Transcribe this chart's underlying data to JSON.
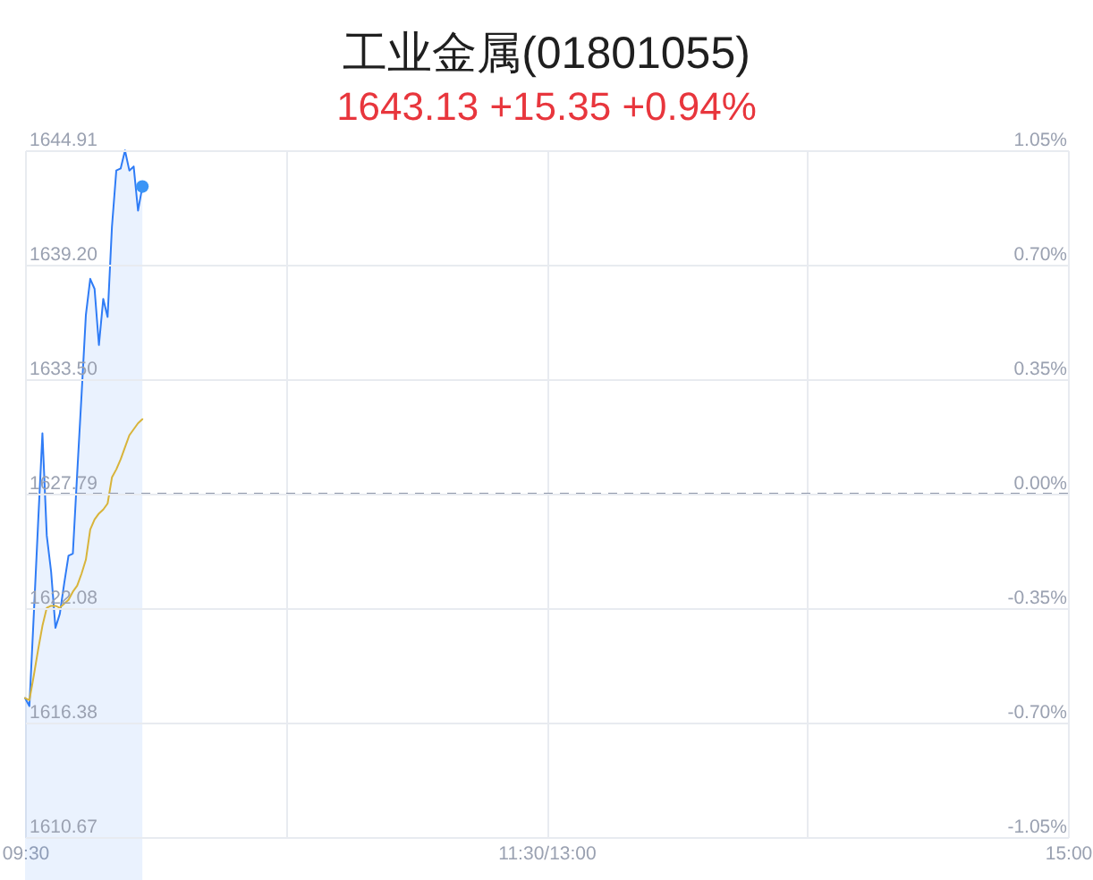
{
  "chart_data": {
    "type": "area",
    "title": "工业金属(01801055)",
    "subtitle": "1643.13 +15.35 +0.94%",
    "categories": [
      "09:30",
      null,
      null,
      null,
      null,
      null,
      null,
      null,
      null,
      null,
      null,
      null,
      null,
      null,
      null,
      null,
      null,
      null,
      null,
      null,
      null,
      null,
      null,
      null,
      null,
      null,
      null,
      null,
      null,
      null,
      null,
      null,
      null,
      null,
      null,
      null,
      null,
      null,
      null,
      null,
      null,
      null,
      null,
      null,
      null,
      null,
      null,
      null,
      null,
      null,
      null,
      null,
      null,
      null,
      null,
      null,
      null,
      null,
      null,
      null,
      null,
      null,
      null,
      null,
      null,
      null,
      null,
      null,
      null,
      null,
      null,
      null,
      null,
      null,
      null,
      null,
      null,
      null,
      null,
      null,
      null,
      null,
      null,
      null,
      null,
      null,
      null,
      null,
      null,
      null,
      null,
      null,
      null,
      null,
      null,
      null,
      null,
      null,
      null,
      null,
      null,
      null,
      null,
      null,
      null,
      null,
      null,
      null,
      null,
      null,
      null,
      null,
      null,
      null,
      null,
      null,
      null,
      null,
      null,
      null,
      "11:30/13:00",
      null,
      null,
      null,
      null,
      null,
      null,
      null,
      null,
      null,
      null,
      null,
      null,
      null,
      null,
      null,
      null,
      null,
      null,
      null,
      null,
      null,
      null,
      null,
      null,
      null,
      null,
      null,
      null,
      null,
      null,
      null,
      null,
      null,
      null,
      null,
      null,
      null,
      null,
      null,
      null,
      null,
      null,
      null,
      null,
      null,
      null,
      null,
      null,
      null,
      null,
      null,
      null,
      null,
      null,
      null,
      null,
      null,
      null,
      null,
      null,
      null,
      null,
      null,
      null,
      null,
      null,
      null,
      null,
      null,
      null,
      null,
      null,
      null,
      null,
      null,
      null,
      null,
      null,
      null,
      null,
      null,
      null,
      null,
      null,
      null,
      null,
      null,
      null,
      null,
      null,
      null,
      null,
      null,
      null,
      null,
      null,
      null,
      null,
      null,
      null,
      null,
      null,
      null,
      null,
      null,
      null,
      null,
      null,
      null,
      null,
      null,
      null,
      null,
      null,
      null,
      null,
      null,
      null,
      null,
      "15:00"
    ],
    "series": [
      {
        "color": "#2f7cf6",
        "values": [
          1617.6,
          1617.2,
          1621.7,
          1626.3,
          1630.8,
          1625.7,
          1623.9,
          1621.1,
          1621.8,
          1623.3,
          1624.7,
          1624.8,
          1628.8,
          1632.7,
          1636.7,
          1638.5,
          1638.0,
          1635.2,
          1637.5,
          1636.6,
          1641.1,
          1643.9,
          1644.0,
          1644.9,
          1643.9,
          1644.1,
          1641.9,
          1643.1,
          null,
          null,
          null,
          null,
          null,
          null,
          null,
          null,
          null,
          null,
          null,
          null,
          null,
          null,
          null,
          null,
          null,
          null,
          null,
          null,
          null,
          null,
          null,
          null,
          null,
          null,
          null,
          null,
          null,
          null,
          null,
          null,
          null,
          null,
          null,
          null,
          null,
          null,
          null,
          null,
          null,
          null,
          null,
          null,
          null,
          null,
          null,
          null,
          null,
          null,
          null,
          null,
          null,
          null,
          null,
          null,
          null,
          null,
          null,
          null,
          null,
          null,
          null,
          null,
          null,
          null,
          null,
          null,
          null,
          null,
          null,
          null,
          null,
          null,
          null,
          null,
          null,
          null,
          null,
          null,
          null,
          null,
          null,
          null,
          null,
          null,
          null,
          null,
          null,
          null,
          null,
          null,
          null,
          null,
          null,
          null,
          null,
          null,
          null,
          null,
          null,
          null,
          null,
          null,
          null,
          null,
          null,
          null,
          null,
          null,
          null,
          null,
          null,
          null,
          null,
          null,
          null,
          null,
          null,
          null,
          null,
          null,
          null,
          null,
          null,
          null,
          null,
          null,
          null,
          null,
          null,
          null,
          null,
          null,
          null,
          null,
          null,
          null,
          null,
          null,
          null,
          null,
          null,
          null,
          null,
          null,
          null,
          null,
          null,
          null,
          null,
          null,
          null,
          null,
          null,
          null,
          null,
          null,
          null,
          null,
          null,
          null,
          null,
          null,
          null,
          null,
          null,
          null,
          null,
          null,
          null,
          null,
          null,
          null,
          null,
          null,
          null,
          null,
          null,
          null,
          null,
          null,
          null,
          null,
          null,
          null,
          null,
          null,
          null,
          null,
          null,
          null,
          null,
          null,
          null,
          null,
          null,
          null,
          null,
          null,
          null,
          null,
          null,
          null,
          null,
          null,
          null,
          null,
          null,
          null,
          null,
          null,
          null
        ]
      },
      {
        "type": "line",
        "color": "#d8b43a",
        "values": [
          1617.6,
          1617.5,
          1618.7,
          1620.0,
          1621.2,
          1622.1,
          1622.2,
          1622.2,
          1622.1,
          1622.3,
          1622.5,
          1622.9,
          1623.2,
          1623.8,
          1624.5,
          1626.0,
          1626.5,
          1626.8,
          1627.0,
          1627.3,
          1628.6,
          1629.0,
          1629.5,
          1630.1,
          1630.7,
          1631.0,
          1631.3,
          1631.5,
          null,
          null,
          null,
          null,
          null,
          null,
          null,
          null,
          null,
          null,
          null,
          null,
          null,
          null,
          null,
          null,
          null,
          null,
          null,
          null,
          null,
          null,
          null,
          null,
          null,
          null,
          null,
          null,
          null,
          null,
          null,
          null,
          null,
          null,
          null,
          null,
          null,
          null,
          null,
          null,
          null,
          null,
          null,
          null,
          null,
          null,
          null,
          null,
          null,
          null,
          null,
          null,
          null,
          null,
          null,
          null,
          null,
          null,
          null,
          null,
          null,
          null,
          null,
          null,
          null,
          null,
          null,
          null,
          null,
          null,
          null,
          null,
          null,
          null,
          null,
          null,
          null,
          null,
          null,
          null,
          null,
          null,
          null,
          null,
          null,
          null,
          null,
          null,
          null,
          null,
          null,
          null,
          null,
          null,
          null,
          null,
          null,
          null,
          null,
          null,
          null,
          null,
          null,
          null,
          null,
          null,
          null,
          null,
          null,
          null,
          null,
          null,
          null,
          null,
          null,
          null,
          null,
          null,
          null,
          null,
          null,
          null,
          null,
          null,
          null,
          null,
          null,
          null,
          null,
          null,
          null,
          null,
          null,
          null,
          null,
          null,
          null,
          null,
          null,
          null,
          null,
          null,
          null,
          null,
          null,
          null,
          null,
          null,
          null,
          null,
          null,
          null,
          null,
          null,
          null,
          null,
          null,
          null,
          null,
          null,
          null,
          null,
          null,
          null,
          null,
          null,
          null,
          null,
          null,
          null,
          null,
          null,
          null,
          null,
          null,
          null,
          null,
          null,
          null,
          null,
          null,
          null,
          null,
          null,
          null,
          null,
          null,
          null,
          null,
          null,
          null,
          null,
          null,
          null,
          null,
          null,
          null,
          null,
          null,
          null,
          null,
          null,
          null,
          null,
          null,
          null,
          null,
          null,
          null,
          null,
          null,
          null,
          null
        ]
      },
      {
        "type": "scatter",
        "color": "#3b95f6",
        "values": [
          null,
          null,
          null,
          null,
          null,
          null,
          null,
          null,
          null,
          null,
          null,
          null,
          null,
          null,
          null,
          null,
          null,
          null,
          null,
          null,
          null,
          null,
          null,
          null,
          null,
          null,
          null,
          1643.1,
          null,
          null,
          null,
          null,
          null,
          null,
          null,
          null,
          null,
          null,
          null,
          null,
          null,
          null,
          null,
          null,
          null,
          null,
          null,
          null,
          null,
          null,
          null,
          null,
          null,
          null,
          null,
          null,
          null,
          null,
          null,
          null,
          null,
          null,
          null,
          null,
          null,
          null,
          null,
          null,
          null,
          null,
          null,
          null,
          null,
          null,
          null,
          null,
          null,
          null,
          null,
          null,
          null,
          null,
          null,
          null,
          null,
          null,
          null,
          null,
          null,
          null,
          null,
          null,
          null,
          null,
          null,
          null,
          null,
          null,
          null,
          null,
          null,
          null,
          null,
          null,
          null,
          null,
          null,
          null,
          null,
          null,
          null,
          null,
          null,
          null,
          null,
          null,
          null,
          null,
          null,
          null,
          null,
          null,
          null,
          null,
          null,
          null,
          null,
          null,
          null,
          null,
          null,
          null,
          null,
          null,
          null,
          null,
          null,
          null,
          null,
          null,
          null,
          null,
          null,
          null,
          null,
          null,
          null,
          null,
          null,
          null,
          null,
          null,
          null,
          null,
          null,
          null,
          null,
          null,
          null,
          null,
          null,
          null,
          null,
          null,
          null,
          null,
          null,
          null,
          null,
          null,
          null,
          null,
          null,
          null,
          null,
          null,
          null,
          null,
          null,
          null,
          null,
          null,
          null,
          null,
          null,
          null,
          null,
          null,
          null,
          null,
          null,
          null,
          null,
          null,
          null,
          null,
          null,
          null,
          null,
          null,
          null,
          null,
          null,
          null,
          null,
          null,
          null,
          null,
          null,
          null,
          null,
          null,
          null,
          null,
          null,
          null,
          null,
          null,
          null,
          null,
          null,
          null,
          null,
          null,
          null,
          null,
          null,
          null,
          null,
          null,
          null,
          null,
          null,
          null,
          null,
          null,
          null,
          null,
          null,
          null,
          null
        ]
      }
    ],
    "ylim": [
      1610.67,
      1644.91
    ],
    "yticks": [
      1644.91,
      {
        "value": 1639.2,
        "label": "1639.20"
      },
      {
        "value": 1633.5,
        "label": "1633.50"
      },
      1627.79,
      1622.08,
      1616.38,
      1610.67
    ],
    "y2lim": [
      -1.05,
      1.05
    ],
    "y2ticks": [
      {
        "value": 1.05,
        "label": "1.05%"
      },
      {
        "value": 0.7,
        "label": "0.70%"
      },
      {
        "value": 0.35,
        "label": "0.35%"
      },
      {
        "value": 0,
        "label": "0.00%"
      },
      {
        "value": -0.35,
        "label": "-0.35%"
      },
      {
        "value": -0.7,
        "label": "-0.70%"
      },
      {
        "value": -1.05,
        "label": "-1.05%"
      }
    ],
    "ref_lines": [
      {
        "axis": "y2",
        "value": 0,
        "color": "#8f97aa",
        "line_style": "dashed"
      }
    ],
    "grid": true
  }
}
